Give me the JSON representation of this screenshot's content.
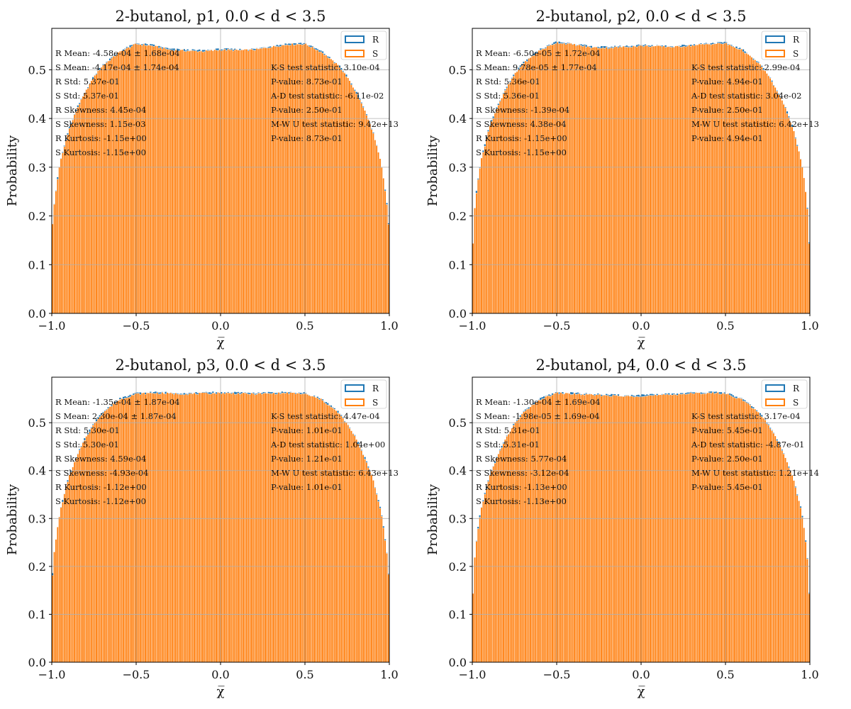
{
  "colors": {
    "R": "#1f77b4",
    "S": "#ff7f0e",
    "grid": "#b0b0b0"
  },
  "chart_data": [
    {
      "type": "bar",
      "title": "2-butanol, p1, 0.0 < d < 3.5",
      "xlabel": "χ̅",
      "ylabel": "Probability",
      "xlim": [
        -1.0,
        1.0
      ],
      "ylim": [
        0.0,
        0.585
      ],
      "xticks": [
        "−1.0",
        "−0.5",
        "0.0",
        "0.5",
        "1.0"
      ],
      "yticks": [
        "0.0",
        "0.1",
        "0.2",
        "0.3",
        "0.4",
        "0.5"
      ],
      "grid": true,
      "legend_position": "top-right",
      "series": [
        {
          "name": "R"
        },
        {
          "name": "S"
        }
      ],
      "profile": {
        "x": [
          -1.0,
          -0.99,
          -0.97,
          -0.95,
          -0.9,
          -0.85,
          -0.8,
          -0.75,
          -0.7,
          -0.6,
          -0.5,
          -0.4,
          -0.3,
          -0.2,
          -0.1,
          0.0,
          0.1,
          0.2,
          0.3,
          0.4,
          0.5,
          0.6,
          0.7,
          0.75,
          0.8,
          0.85,
          0.9,
          0.95,
          0.97,
          0.99,
          1.0
        ],
        "y": [
          0.155,
          0.21,
          0.265,
          0.31,
          0.375,
          0.42,
          0.455,
          0.485,
          0.508,
          0.536,
          0.553,
          0.549,
          0.541,
          0.539,
          0.538,
          0.541,
          0.54,
          0.541,
          0.547,
          0.552,
          0.553,
          0.536,
          0.508,
          0.485,
          0.455,
          0.42,
          0.375,
          0.31,
          0.265,
          0.21,
          0.155
        ]
      },
      "stats_left": [
        "R Mean: -4.58e-04 ± 1.68e-04",
        "S Mean: -4.17e-04 ± 1.74e-04",
        "R Std: 5.37e-01",
        "S Std: 5.37e-01",
        "R Skewness: 4.45e-04",
        "S Skewness: 1.15e-03",
        "R Kurtosis: -1.15e+00",
        "S Kurtosis: -1.15e+00"
      ],
      "stats_right": [
        "K-S test statistic: 3.10e-04",
        "P-value: 8.73e-01",
        "A-D test statistic: -6.11e-02",
        "P-value: 2.50e-01",
        "M-W U test statistic: 9.42e+13",
        "P-value: 8.73e-01"
      ]
    },
    {
      "type": "bar",
      "title": "2-butanol, p2, 0.0 < d < 3.5",
      "xlabel": "χ̅",
      "ylabel": "Probability",
      "xlim": [
        -1.0,
        1.0
      ],
      "ylim": [
        0.0,
        0.585
      ],
      "xticks": [
        "−1.0",
        "−0.5",
        "0.0",
        "0.5",
        "1.0"
      ],
      "yticks": [
        "0.0",
        "0.1",
        "0.2",
        "0.3",
        "0.4",
        "0.5"
      ],
      "grid": true,
      "legend_position": "top-right",
      "series": [
        {
          "name": "R"
        },
        {
          "name": "S"
        }
      ],
      "profile": {
        "x": [
          -1.0,
          -0.99,
          -0.97,
          -0.95,
          -0.9,
          -0.85,
          -0.8,
          -0.75,
          -0.7,
          -0.6,
          -0.5,
          -0.4,
          -0.3,
          -0.2,
          -0.1,
          0.0,
          0.1,
          0.2,
          0.3,
          0.4,
          0.5,
          0.6,
          0.7,
          0.75,
          0.8,
          0.85,
          0.9,
          0.95,
          0.97,
          0.99,
          1.0
        ],
        "y": [
          0.085,
          0.2,
          0.265,
          0.31,
          0.38,
          0.425,
          0.46,
          0.49,
          0.512,
          0.54,
          0.556,
          0.552,
          0.546,
          0.545,
          0.547,
          0.549,
          0.548,
          0.547,
          0.55,
          0.553,
          0.554,
          0.54,
          0.512,
          0.49,
          0.46,
          0.425,
          0.38,
          0.31,
          0.265,
          0.2,
          0.085
        ]
      },
      "stats_left": [
        "R Mean: -6.50e-05 ± 1.72e-04",
        "S Mean: 9.78e-05 ± 1.77e-04",
        "R Std: 5.36e-01",
        "S Std: 5.36e-01",
        "R Skewness: -1.39e-04",
        "S Skewness: 4.38e-04",
        "R Kurtosis: -1.15e+00",
        "S Kurtosis: -1.15e+00"
      ],
      "stats_right": [
        "K-S test statistic: 2.99e-04",
        "P-value: 4.94e-01",
        "A-D test statistic: 3.04e-02",
        "P-value: 2.50e-01",
        "M-W U test statistic: 6.42e+13",
        "P-value: 4.94e-01"
      ]
    },
    {
      "type": "bar",
      "title": "2-butanol, p3, 0.0 < d < 3.5",
      "xlabel": "χ̅",
      "ylabel": "Probability",
      "xlim": [
        -1.0,
        1.0
      ],
      "ylim": [
        0.0,
        0.595
      ],
      "xticks": [
        "−1.0",
        "−0.5",
        "0.0",
        "0.5",
        "1.0"
      ],
      "yticks": [
        "0.0",
        "0.1",
        "0.2",
        "0.3",
        "0.4",
        "0.5"
      ],
      "grid": true,
      "legend_position": "top-right",
      "series": [
        {
          "name": "R"
        },
        {
          "name": "S"
        }
      ],
      "profile": {
        "x": [
          -1.0,
          -0.99,
          -0.97,
          -0.95,
          -0.9,
          -0.85,
          -0.8,
          -0.75,
          -0.7,
          -0.6,
          -0.5,
          -0.4,
          -0.3,
          -0.2,
          -0.1,
          0.0,
          0.1,
          0.2,
          0.3,
          0.4,
          0.5,
          0.6,
          0.7,
          0.75,
          0.8,
          0.85,
          0.9,
          0.95,
          0.97,
          0.99,
          1.0
        ],
        "y": [
          0.15,
          0.215,
          0.27,
          0.315,
          0.385,
          0.43,
          0.468,
          0.497,
          0.52,
          0.548,
          0.56,
          0.562,
          0.561,
          0.56,
          0.561,
          0.562,
          0.561,
          0.56,
          0.561,
          0.562,
          0.56,
          0.548,
          0.52,
          0.497,
          0.468,
          0.43,
          0.385,
          0.315,
          0.27,
          0.215,
          0.15
        ]
      },
      "stats_left": [
        "R Mean: -1.35e-04 ± 1.87e-04",
        "S Mean: 2.30e-04 ± 1.87e-04",
        "R Std: 5.30e-01",
        "S Std: 5.30e-01",
        "R Skewness: 4.59e-04",
        "S Skewness: -4.93e-04",
        "R Kurtosis: -1.12e+00",
        "S Kurtosis: -1.12e+00"
      ],
      "stats_right": [
        "K-S test statistic: 4.47e-04",
        "P-value: 1.01e-01",
        "A-D test statistic: 1.04e+00",
        "P-value: 1.21e-01",
        "M-W U test statistic: 6.43e+13",
        "P-value: 1.01e-01"
      ]
    },
    {
      "type": "bar",
      "title": "2-butanol, p4, 0.0 < d < 3.5",
      "xlabel": "χ̅",
      "ylabel": "Probability",
      "xlim": [
        -1.0,
        1.0
      ],
      "ylim": [
        0.0,
        0.595
      ],
      "xticks": [
        "−1.0",
        "−0.5",
        "0.0",
        "0.5",
        "1.0"
      ],
      "yticks": [
        "0.0",
        "0.1",
        "0.2",
        "0.3",
        "0.4",
        "0.5"
      ],
      "grid": true,
      "legend_position": "top-right",
      "series": [
        {
          "name": "R"
        },
        {
          "name": "S"
        }
      ],
      "profile": {
        "x": [
          -1.0,
          -0.99,
          -0.97,
          -0.95,
          -0.9,
          -0.85,
          -0.8,
          -0.75,
          -0.7,
          -0.6,
          -0.5,
          -0.4,
          -0.3,
          -0.2,
          -0.1,
          0.0,
          0.1,
          0.2,
          0.3,
          0.4,
          0.5,
          0.6,
          0.7,
          0.75,
          0.8,
          0.85,
          0.9,
          0.95,
          0.97,
          0.99,
          1.0
        ],
        "y": [
          0.085,
          0.2,
          0.268,
          0.315,
          0.385,
          0.43,
          0.468,
          0.497,
          0.52,
          0.548,
          0.562,
          0.56,
          0.558,
          0.557,
          0.555,
          0.556,
          0.557,
          0.559,
          0.561,
          0.562,
          0.561,
          0.548,
          0.52,
          0.497,
          0.468,
          0.43,
          0.385,
          0.315,
          0.268,
          0.2,
          0.085
        ]
      },
      "stats_left": [
        "R Mean: -1.30e-04 ± 1.69e-04",
        "S Mean: -1.98e-05 ± 1.69e-04",
        "R Std: 5.31e-01",
        "S Std: 5.31e-01",
        "R Skewness: 5.77e-04",
        "S Skewness: -3.12e-04",
        "R Kurtosis: -1.13e+00",
        "S Kurtosis: -1.13e+00"
      ],
      "stats_right": [
        "K-S test statistic: 3.17e-04",
        "P-value: 5.45e-01",
        "A-D test statistic: -4.87e-01",
        "P-value: 2.50e-01",
        "M-W U test statistic: 1.21e+14",
        "P-value: 5.45e-01"
      ]
    }
  ]
}
